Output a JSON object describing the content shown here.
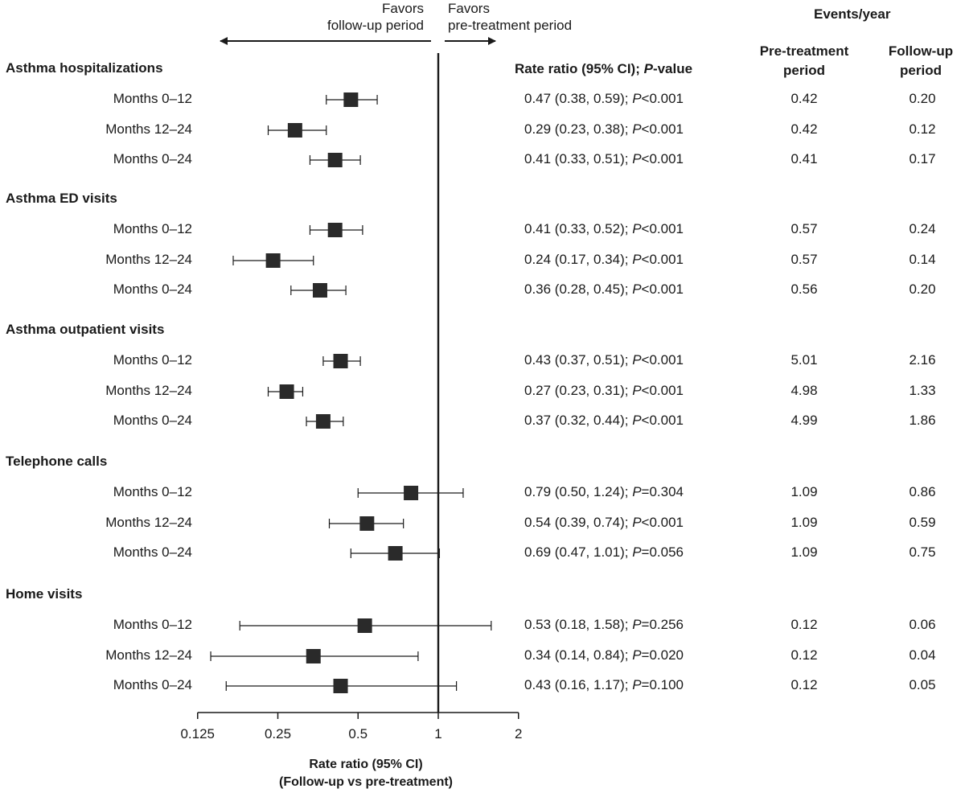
{
  "header": {
    "favors_left_line1": "Favors",
    "favors_left_line2": "follow-up period",
    "favors_right_line1": "Favors",
    "favors_right_line2": "pre-treatment period",
    "rate_ratio_label_a": "Rate ratio (95% CI); ",
    "rate_ratio_label_p": "P",
    "rate_ratio_label_b": "-value",
    "events_year": "Events/year",
    "pre_line1": "Pre-treatment",
    "pre_line2": "period",
    "follow_line1": "Follow-up",
    "follow_line2": "period"
  },
  "axis": {
    "label_line1": "Rate ratio (95% CI)",
    "label_line2": "(Follow-up vs pre-treatment)"
  },
  "chart_data": {
    "type": "forest",
    "scale": "log2",
    "xlim": [
      0.125,
      2
    ],
    "reference_line": 1,
    "tick_values": [
      0.125,
      0.25,
      0.5,
      1,
      2
    ],
    "tick_labels": [
      "0.125",
      "0.25",
      "0.5",
      "1",
      "2"
    ],
    "xlabel": "Rate ratio (95% CI) (Follow-up vs pre-treatment)",
    "groups": [
      {
        "title": "Asthma hospitalizations",
        "rows": [
          {
            "label": "Months 0–12",
            "rr": 0.47,
            "lo": 0.38,
            "hi": 0.59,
            "ci_text": "0.47 (0.38, 0.59); ",
            "p_sym": "P",
            "p_text": "<0.001",
            "pre": "0.42",
            "follow": "0.20"
          },
          {
            "label": "Months 12–24",
            "rr": 0.29,
            "lo": 0.23,
            "hi": 0.38,
            "ci_text": "0.29 (0.23, 0.38); ",
            "p_sym": "P",
            "p_text": "<0.001",
            "pre": "0.42",
            "follow": "0.12"
          },
          {
            "label": "Months 0–24",
            "rr": 0.41,
            "lo": 0.33,
            "hi": 0.51,
            "ci_text": "0.41 (0.33, 0.51); ",
            "p_sym": "P",
            "p_text": "<0.001",
            "pre": "0.41",
            "follow": "0.17"
          }
        ]
      },
      {
        "title": "Asthma ED visits",
        "rows": [
          {
            "label": "Months 0–12",
            "rr": 0.41,
            "lo": 0.33,
            "hi": 0.52,
            "ci_text": "0.41 (0.33, 0.52); ",
            "p_sym": "P",
            "p_text": "<0.001",
            "pre": "0.57",
            "follow": "0.24"
          },
          {
            "label": "Months 12–24",
            "rr": 0.24,
            "lo": 0.17,
            "hi": 0.34,
            "ci_text": "0.24 (0.17, 0.34); ",
            "p_sym": "P",
            "p_text": "<0.001",
            "pre": "0.57",
            "follow": "0.14"
          },
          {
            "label": "Months 0–24",
            "rr": 0.36,
            "lo": 0.28,
            "hi": 0.45,
            "ci_text": "0.36 (0.28, 0.45); ",
            "p_sym": "P",
            "p_text": "<0.001",
            "pre": "0.56",
            "follow": "0.20"
          }
        ]
      },
      {
        "title": "Asthma outpatient visits",
        "rows": [
          {
            "label": "Months 0–12",
            "rr": 0.43,
            "lo": 0.37,
            "hi": 0.51,
            "ci_text": "0.43 (0.37, 0.51); ",
            "p_sym": "P",
            "p_text": "<0.001",
            "pre": "5.01",
            "follow": "2.16"
          },
          {
            "label": "Months 12–24",
            "rr": 0.27,
            "lo": 0.23,
            "hi": 0.31,
            "ci_text": "0.27 (0.23, 0.31); ",
            "p_sym": "P",
            "p_text": "<0.001",
            "pre": "4.98",
            "follow": "1.33"
          },
          {
            "label": "Months 0–24",
            "rr": 0.37,
            "lo": 0.32,
            "hi": 0.44,
            "ci_text": "0.37 (0.32, 0.44); ",
            "p_sym": "P",
            "p_text": "<0.001",
            "pre": "4.99",
            "follow": "1.86"
          }
        ]
      },
      {
        "title": "Telephone calls",
        "rows": [
          {
            "label": "Months 0–12",
            "rr": 0.79,
            "lo": 0.5,
            "hi": 1.24,
            "ci_text": "0.79 (0.50, 1.24); ",
            "p_sym": "P",
            "p_text": "=0.304",
            "pre": "1.09",
            "follow": "0.86"
          },
          {
            "label": "Months 12–24",
            "rr": 0.54,
            "lo": 0.39,
            "hi": 0.74,
            "ci_text": "0.54 (0.39, 0.74); ",
            "p_sym": "P",
            "p_text": "<0.001",
            "pre": "1.09",
            "follow": "0.59"
          },
          {
            "label": "Months 0–24",
            "rr": 0.69,
            "lo": 0.47,
            "hi": 1.01,
            "ci_text": "0.69 (0.47, 1.01); ",
            "p_sym": "P",
            "p_text": "=0.056",
            "pre": "1.09",
            "follow": "0.75"
          }
        ]
      },
      {
        "title": "Home visits",
        "rows": [
          {
            "label": "Months 0–12",
            "rr": 0.53,
            "lo": 0.18,
            "hi": 1.58,
            "ci_text": "0.53 (0.18, 1.58); ",
            "p_sym": "P",
            "p_text": "=0.256",
            "pre": "0.12",
            "follow": "0.06"
          },
          {
            "label": "Months 12–24",
            "rr": 0.34,
            "lo": 0.14,
            "hi": 0.84,
            "ci_text": "0.34 (0.14, 0.84); ",
            "p_sym": "P",
            "p_text": "=0.020",
            "pre": "0.12",
            "follow": "0.04"
          },
          {
            "label": "Months 0–24",
            "rr": 0.43,
            "lo": 0.16,
            "hi": 1.17,
            "ci_text": "0.43 (0.16, 1.17); ",
            "p_sym": "P",
            "p_text": "=0.100",
            "pre": "0.12",
            "follow": "0.05"
          }
        ]
      }
    ]
  }
}
